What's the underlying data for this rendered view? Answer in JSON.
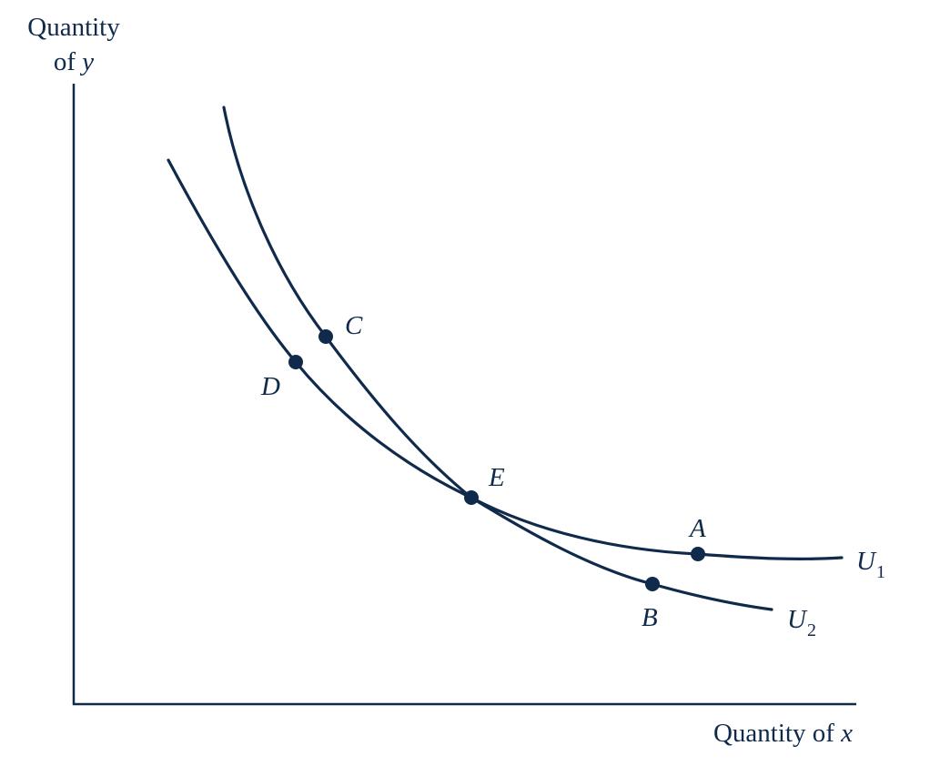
{
  "axes": {
    "y_label_line1": "Quantity",
    "y_label_line2_prefix": "of ",
    "y_label_var": "y",
    "x_label_prefix": "Quantity of ",
    "x_label_var": "x"
  },
  "points": {
    "A": "A",
    "B": "B",
    "C": "C",
    "D": "D",
    "E": "E"
  },
  "curves": {
    "u1_base": "U",
    "u1_sub": "1",
    "u2_base": "U",
    "u2_sub": "2"
  },
  "colors": {
    "ink": "#0f2a4a",
    "background": "#ffffff"
  }
}
